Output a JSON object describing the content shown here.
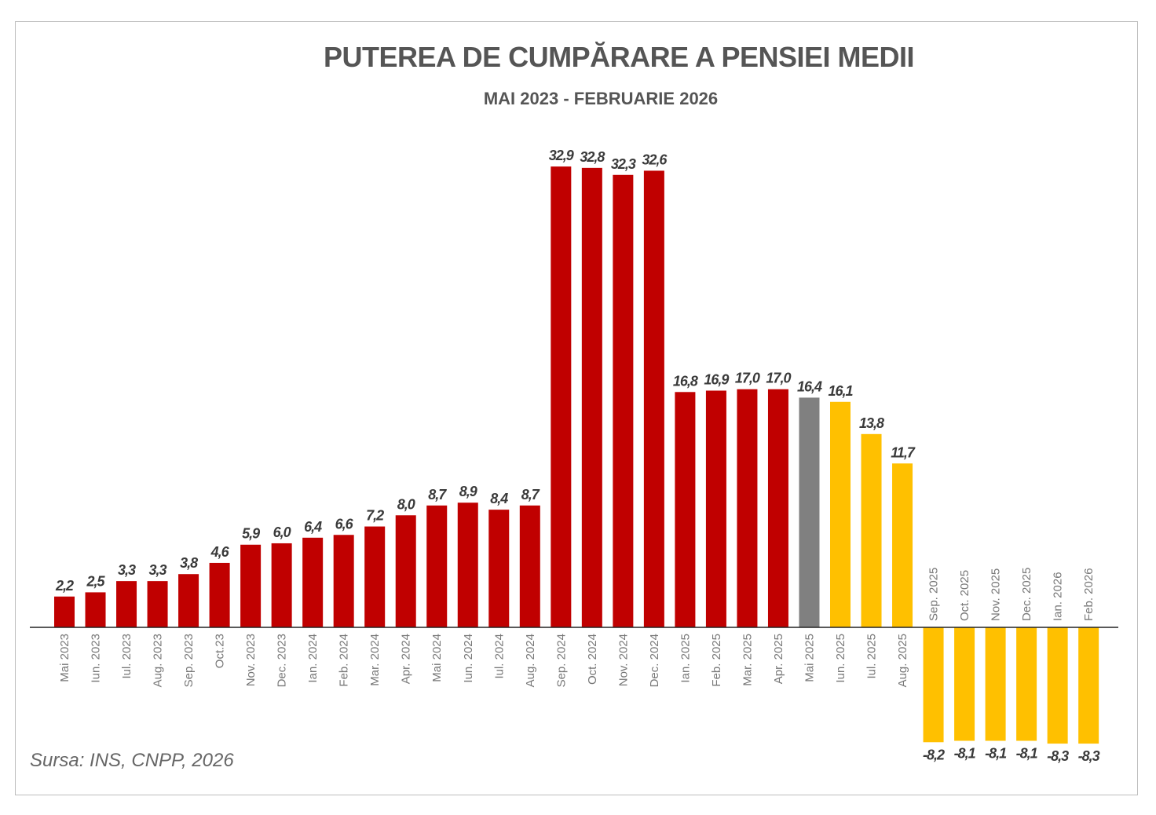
{
  "chart_data": {
    "type": "bar",
    "title": "PUTEREA DE CUMPĂRARE A PENSIEI MEDII",
    "subtitle": "MAI 2023 - FEBRUARIE 2026",
    "source": "Sursa: INS, CNPP, 2026",
    "xlabel": "",
    "ylabel": "",
    "grid": false,
    "ylim": [
      -8.3,
      32.9
    ],
    "categories": [
      "Mai 2023",
      "Iun. 2023",
      "Iul. 2023",
      "Aug. 2023",
      "Sep. 2023",
      "Oct.23",
      "Nov. 2023",
      "Dec. 2023",
      "Ian. 2024",
      "Feb. 2024",
      "Mar. 2024",
      "Apr. 2024",
      "Mai 2024",
      "Iun. 2024",
      "Iul. 2024",
      "Aug. 2024",
      "Sep. 2024",
      "Oct. 2024",
      "Nov. 2024",
      "Dec. 2024",
      "Ian. 2025",
      "Feb. 2025",
      "Mar. 2025",
      "Apr. 2025",
      "Mai 2025",
      "Iun. 2025",
      "Iul. 2025",
      "Aug. 2025",
      "Sep. 2025",
      "Oct. 2025",
      "Nov. 2025",
      "Dec. 2025",
      "Ian. 2026",
      "Feb. 2026"
    ],
    "values": [
      2.2,
      2.5,
      3.3,
      3.3,
      3.8,
      4.6,
      5.9,
      6.0,
      6.4,
      6.6,
      7.2,
      8.0,
      8.7,
      8.9,
      8.4,
      8.7,
      32.9,
      32.8,
      32.3,
      32.6,
      16.8,
      16.9,
      17.0,
      17.0,
      16.4,
      16.1,
      13.8,
      11.7,
      -8.2,
      -8.1,
      -8.1,
      -8.1,
      -8.3,
      -8.3
    ],
    "labels": [
      "2,2",
      "2,5",
      "3,3",
      "3,3",
      "3,8",
      "4,6",
      "5,9",
      "6,0",
      "6,4",
      "6,6",
      "7,2",
      "8,0",
      "8,7",
      "8,9",
      "8,4",
      "8,7",
      "32,9",
      "32,8",
      "32,3",
      "32,6",
      "16,8",
      "16,9",
      "17,0",
      "17,0",
      "16,4",
      "16,1",
      "13,8",
      "11,7",
      "-8,2",
      "-8,1",
      "-8,1",
      "-8,1",
      "-8,3",
      "-8,3"
    ],
    "bar_colors": [
      "#C00000",
      "#C00000",
      "#C00000",
      "#C00000",
      "#C00000",
      "#C00000",
      "#C00000",
      "#C00000",
      "#C00000",
      "#C00000",
      "#C00000",
      "#C00000",
      "#C00000",
      "#C00000",
      "#C00000",
      "#C00000",
      "#C00000",
      "#C00000",
      "#C00000",
      "#C00000",
      "#C00000",
      "#C00000",
      "#C00000",
      "#C00000",
      "#808080",
      "#FFC000",
      "#FFC000",
      "#FFC000",
      "#FFC000",
      "#FFC000",
      "#FFC000",
      "#FFC000",
      "#FFC000",
      "#FFC000"
    ]
  }
}
